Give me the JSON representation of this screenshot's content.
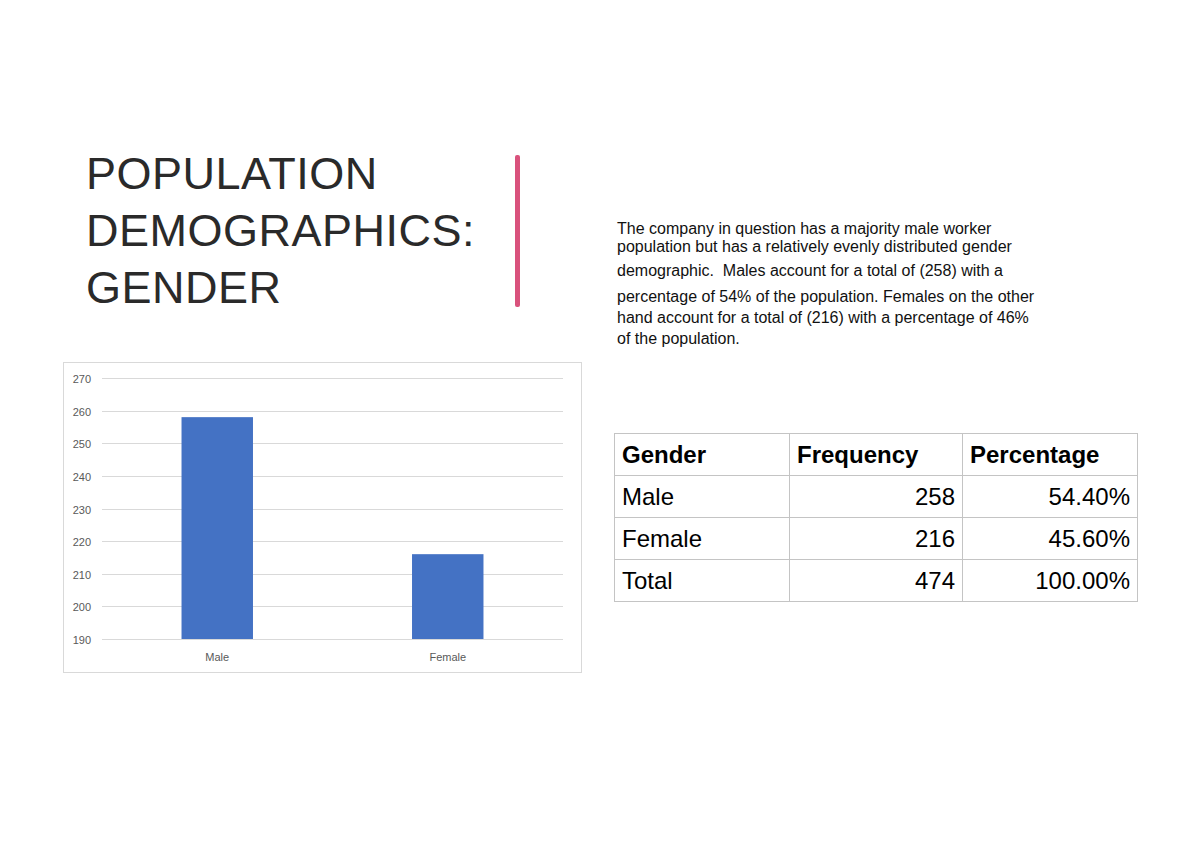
{
  "slide": {
    "title": [
      "POPULATION",
      "DEMOGRAPHICS:",
      "GENDER"
    ],
    "paragraph": [
      "The company in question has a majority male worker",
      "population but has a relatively evenly distributed gender",
      "demographic.  Males account for a total of (258) with a",
      "percentage of 54% of the population. Females on the other",
      "hand account for a total of (216) with a percentage of 46%",
      "of the population."
    ]
  },
  "chart_data": {
    "type": "bar",
    "categories": [
      "Male",
      "Female"
    ],
    "values": [
      258,
      216
    ],
    "color": "#4472c4",
    "ylim": [
      190,
      270
    ],
    "yticks": [
      190,
      200,
      210,
      220,
      230,
      240,
      250,
      260,
      270
    ],
    "grid": true
  },
  "table": {
    "header": [
      "Gender",
      "Frequency",
      "Percentage"
    ],
    "rows": [
      [
        "Male",
        258,
        "54.40%"
      ],
      [
        "Female",
        216,
        "45.60%"
      ],
      [
        "Total",
        474,
        "100.00%"
      ]
    ]
  }
}
